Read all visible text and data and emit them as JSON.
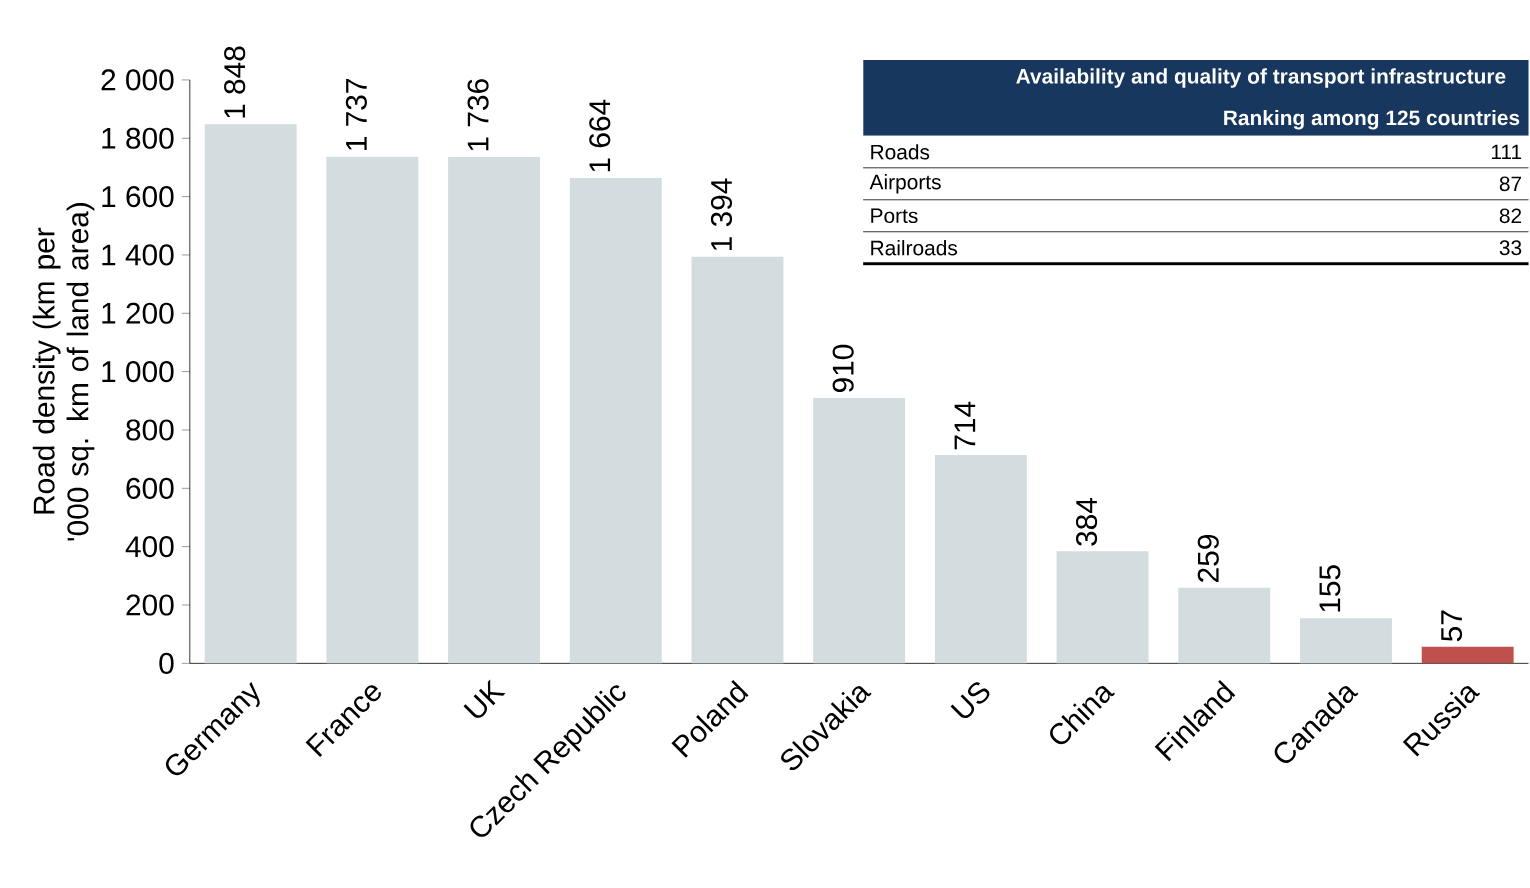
{
  "chart_data": {
    "type": "bar",
    "ylabel": "Road density (km per '000 sq. km of land area)",
    "categories": [
      "Germany",
      "France",
      "UK",
      "Czech Republic",
      "Poland",
      "Slovakia",
      "US",
      "China",
      "Finland",
      "Canada",
      "Russia"
    ],
    "values": [
      1848,
      1737,
      1736,
      1664,
      1394,
      910,
      714,
      384,
      259,
      155,
      57
    ],
    "value_labels": [
      "1 848",
      "1 737",
      "1 736",
      "1 664",
      "1 394",
      "910",
      "714",
      "384",
      "259",
      "155",
      "57"
    ],
    "colors": [
      "#d3dcde",
      "#d3dcde",
      "#d3dcde",
      "#d3dcde",
      "#d3dcde",
      "#d3dcde",
      "#d3dcde",
      "#d3dcde",
      "#d3dcde",
      "#d3dcde",
      "#c0504d"
    ],
    "ylim": [
      0,
      2000
    ],
    "yticks": [
      0,
      200,
      400,
      600,
      800,
      {
        "value": 1000,
        "label": "1 000"
      },
      {
        "value": 1200,
        "label": "1 200"
      },
      {
        "value": 1400,
        "label": "1 400"
      },
      {
        "value": 1600,
        "label": "1 600"
      },
      {
        "value": 1800,
        "label": "1 800"
      },
      {
        "value": 2000,
        "label": "2 000"
      }
    ],
    "annotations": [
      "Availability and quality of transport infrastructure",
      "Ranking among 125 countries",
      "Roads",
      "111",
      "Airports",
      "87",
      "Ports",
      "82",
      "Railroads",
      "33"
    ]
  }
}
